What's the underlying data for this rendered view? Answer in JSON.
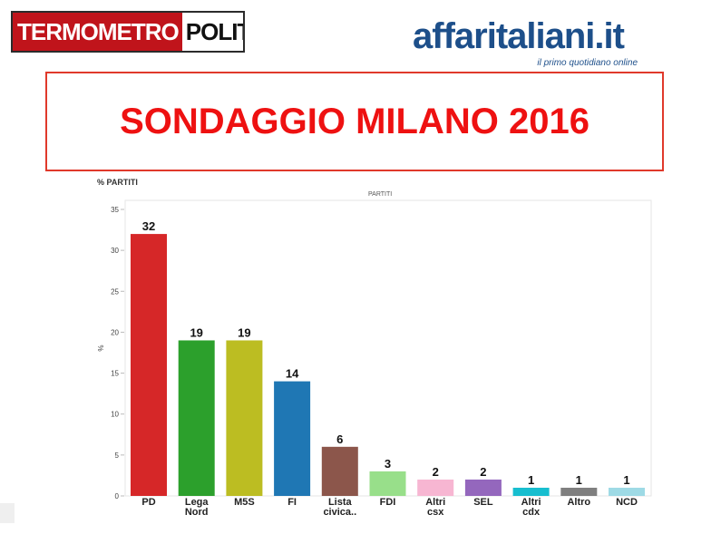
{
  "logos": {
    "termometro_red": "TERMOMETRO",
    "termometro_white": "POLITICO",
    "affaritaliani_name": "affaritaliani.it",
    "affaritaliani_tagline": "il primo quotidiano online"
  },
  "title": "SONDAGGIO MILANO 2016",
  "panel_label": "% PARTITI",
  "colors": {
    "title": "#ee1111",
    "title_border": "#e0392b",
    "brand_blue": "#1d4f8a",
    "brand_red": "#c0141b"
  },
  "chart_data": {
    "type": "bar",
    "title": "PARTITI",
    "xlabel": "",
    "ylabel": "%",
    "ylim": [
      0,
      35
    ],
    "yticks": [
      0,
      5,
      10,
      15,
      20,
      25,
      30,
      35
    ],
    "grid": false,
    "categories": [
      "PD",
      "Lega Nord",
      "M5S",
      "FI",
      "Lista civica..",
      "FDI",
      "Altri csx",
      "SEL",
      "Altri cdx",
      "Altro",
      "NCD"
    ],
    "values": [
      32,
      19,
      19,
      14,
      6,
      3,
      2,
      2,
      1,
      1,
      1
    ],
    "colors": [
      "#d62728",
      "#2ca02c",
      "#bcbd22",
      "#1f77b4",
      "#8c564b",
      "#98df8a",
      "#f7b6d2",
      "#9467bd",
      "#17becf",
      "#7f7f7f",
      "#9edae5"
    ]
  }
}
